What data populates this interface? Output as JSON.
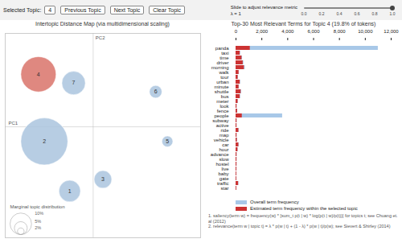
{
  "chart_data": [
    {
      "type": "bubble",
      "title": "Intertopic Distance Map (via multidimensional scaling)",
      "xlabel": "PC1",
      "ylabel": "PC2",
      "labels": [
        1,
        2,
        3,
        4,
        5,
        6,
        7
      ],
      "x": [
        -1.2,
        -2.5,
        0.5,
        -2.8,
        3.8,
        3.2,
        -1.0
      ],
      "y": [
        -2.2,
        -0.5,
        -1.8,
        1.8,
        -0.5,
        1.2,
        1.5
      ],
      "radius": [
        0.55,
        1.2,
        0.45,
        0.9,
        0.28,
        0.32,
        0.6
      ],
      "colors": [
        "#aac4de",
        "#aac4de",
        "#aac4de",
        "#d9736a",
        "#aac4de",
        "#aac4de",
        "#aac4de"
      ],
      "xlim": [
        -4.5,
        5.5
      ],
      "ylim": [
        -3.8,
        3.2
      ],
      "tick_labels": false,
      "grid": false,
      "size_legend": {
        "title": "Marginal topic distribution",
        "values": [
          10,
          5,
          2
        ],
        "value_labels": [
          "10%",
          "5%",
          "2%"
        ],
        "radius": [
          0.55,
          0.33,
          0.17
        ]
      },
      "annotations": [
        "Selected Topic:",
        "4",
        "Previous Topic",
        "Next Topic",
        "Clear Topic",
        "Slide to adjust relevance metric",
        "λ = 1",
        "0.0",
        "0.2",
        "0.4",
        "0.6",
        "0.8",
        "1.0"
      ]
    },
    {
      "type": "bar",
      "orientation": "horizontal",
      "stacked": false,
      "grid": false,
      "legend": "bottom",
      "title": "Top-30 Most Relevant Terms for Topic 4 (19.8% of tokens)",
      "categories": [
        "panda",
        "taxi",
        "time",
        "driver",
        "morning",
        "walk",
        "tour",
        "urban",
        "minute",
        "shuttle",
        "bus",
        "meter",
        "look",
        "fence",
        "people",
        "subway",
        "active",
        "ride",
        "map",
        "vehicle",
        "car",
        "hour",
        "advance",
        "slow",
        "hostel",
        "live",
        "baby",
        "gate",
        "traffic",
        "star"
      ],
      "series": [
        {
          "name": "Overall term frequency",
          "color": "#a8c8e8",
          "values": [
            11000,
            350,
            500,
            600,
            700,
            250,
            180,
            350,
            250,
            430,
            350,
            170,
            80,
            130,
            3600,
            80,
            75,
            240,
            80,
            110,
            240,
            160,
            80,
            75,
            75,
            70,
            65,
            65,
            220,
            65
          ]
        },
        {
          "name": "Estimated term frequency within the selected topic",
          "color": "#cc3333",
          "values": [
            1100,
            320,
            460,
            550,
            640,
            230,
            160,
            320,
            230,
            390,
            320,
            155,
            70,
            115,
            480,
            70,
            65,
            215,
            70,
            95,
            215,
            145,
            70,
            65,
            65,
            60,
            55,
            55,
            195,
            55
          ]
        }
      ],
      "xlim": [
        0,
        12000
      ],
      "xticks": [
        0,
        {
          "value": 2000,
          "label": "2,000"
        },
        {
          "value": 4000,
          "label": "4,000"
        },
        {
          "value": 6000,
          "label": "6,000"
        },
        {
          "value": 8000,
          "label": "8,000"
        },
        {
          "value": 10000,
          "label": "10,000"
        },
        {
          "value": 12000,
          "label": "12,000"
        }
      ],
      "annotations": [
        "1. saliency(term w) = frequency(w) * [sum_t p(t | w) * log(p(t | w)/p(t))] for topics t; see Chuang et. al (2012)",
        "2. relevance(term w | topic t) = λ * p(w | t) + (1 - λ) * p(w | t)/p(w); see Sievert & Shirley (2014)"
      ]
    }
  ]
}
